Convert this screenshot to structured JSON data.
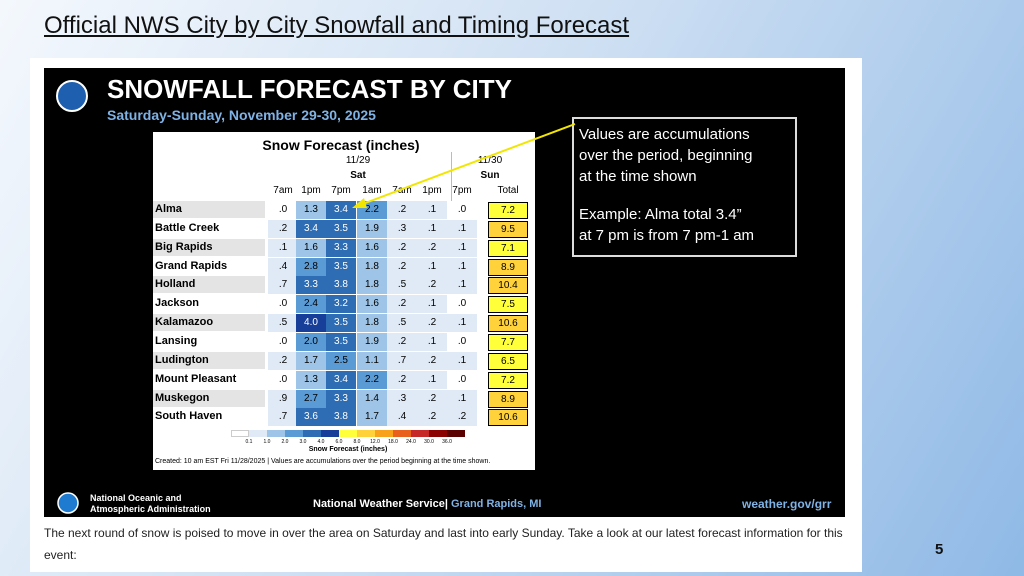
{
  "slide": {
    "title": "Official NWS City by City Snowfall and Timing Forecast",
    "page_number": "5",
    "caption": "The next round of snow is poised to move in over the area on Saturday and last into early Sunday. Take a look at our latest forecast information for this event:"
  },
  "graphic": {
    "heading": "SNOWFALL FORECAST BY CITY",
    "subtitle": "Saturday-Sunday, November 29-30, 2025",
    "callout": [
      "Values are accumulations",
      "over the period, beginning",
      "at the time shown",
      "Example: Alma total 3.4”",
      "at 7 pm is from 7 pm-1 am"
    ],
    "footer": {
      "agency": [
        "National Oceanic and",
        "Atmospheric Administration"
      ],
      "service": "National Weather Service|",
      "office": "Grand Rapids, MI",
      "url": "weather.gov/grr"
    }
  },
  "table": {
    "title": "Snow Forecast (inches)",
    "dates": [
      {
        "date": "11/29",
        "day": "Sat"
      },
      {
        "date": "11/30",
        "day": "Sun"
      }
    ],
    "times": [
      "7am",
      "1pm",
      "7pm",
      "1am",
      "7am",
      "1pm",
      "7pm"
    ],
    "total_header": "Total",
    "rows": [
      {
        "city": "Alma",
        "values": [
          ".0",
          "1.3",
          "3.4",
          "2.2",
          ".2",
          ".1",
          ".0"
        ],
        "total": "7.2"
      },
      {
        "city": "Battle Creek",
        "values": [
          ".2",
          "3.4",
          "3.5",
          "1.9",
          ".3",
          ".1",
          ".1"
        ],
        "total": "9.5"
      },
      {
        "city": "Big Rapids",
        "values": [
          ".1",
          "1.6",
          "3.3",
          "1.6",
          ".2",
          ".2",
          ".1"
        ],
        "total": "7.1"
      },
      {
        "city": "Grand Rapids",
        "values": [
          ".4",
          "2.8",
          "3.5",
          "1.8",
          ".2",
          ".1",
          ".1"
        ],
        "total": "8.9"
      },
      {
        "city": "Holland",
        "values": [
          ".7",
          "3.3",
          "3.8",
          "1.8",
          ".5",
          ".2",
          ".1"
        ],
        "total": "10.4"
      },
      {
        "city": "Jackson",
        "values": [
          ".0",
          "2.4",
          "3.2",
          "1.6",
          ".2",
          ".1",
          ".0"
        ],
        "total": "7.5"
      },
      {
        "city": "Kalamazoo",
        "values": [
          ".5",
          "4.0",
          "3.5",
          "1.8",
          ".5",
          ".2",
          ".1"
        ],
        "total": "10.6"
      },
      {
        "city": "Lansing",
        "values": [
          ".0",
          "2.0",
          "3.5",
          "1.9",
          ".2",
          ".1",
          ".0"
        ],
        "total": "7.7"
      },
      {
        "city": "Ludington",
        "values": [
          ".2",
          "1.7",
          "2.5",
          "1.1",
          ".7",
          ".2",
          ".1"
        ],
        "total": "6.5"
      },
      {
        "city": "Mount Pleasant",
        "values": [
          ".0",
          "1.3",
          "3.4",
          "2.2",
          ".2",
          ".1",
          ".0"
        ],
        "total": "7.2"
      },
      {
        "city": "Muskegon",
        "values": [
          ".9",
          "2.7",
          "3.3",
          "1.4",
          ".3",
          ".2",
          ".1"
        ],
        "total": "8.9"
      },
      {
        "city": "South Haven",
        "values": [
          ".7",
          "3.6",
          "3.8",
          "1.7",
          ".4",
          ".2",
          ".2"
        ],
        "total": "10.6"
      }
    ],
    "legend": {
      "labels": [
        "0.1",
        "1.0",
        "2.0",
        "3.0",
        "4.0",
        "6.0",
        "8.0",
        "12.0",
        "18.0",
        "24.0",
        "30.0",
        "36.0"
      ],
      "colors": [
        "#dfeaf6",
        "#9ec5e8",
        "#5b9bd5",
        "#2e6db4",
        "#173f99",
        "#ffff3a",
        "#ffd23c",
        "#f7a21a",
        "#e8601c",
        "#c62828",
        "#8b0000",
        "#5a0000"
      ]
    },
    "legend_title": "Snow Forecast (inches)",
    "note": "Created: 10 am EST Fri 11/28/2025  |  Values are accumulations over the period beginning at the time shown."
  }
}
